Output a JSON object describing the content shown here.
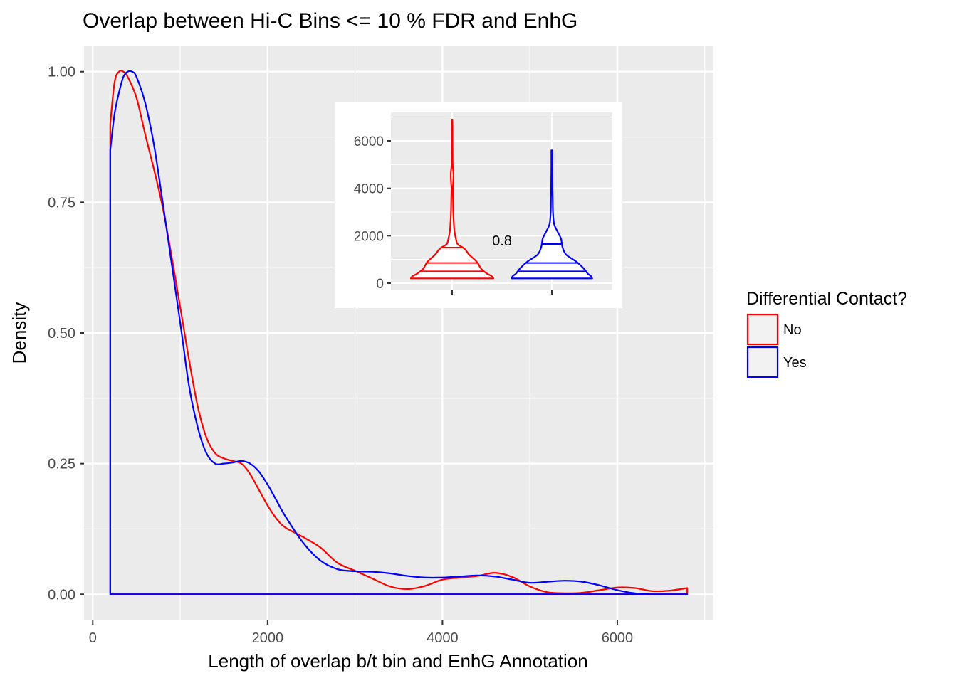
{
  "chart_data": {
    "type": "area",
    "title": "Overlap between Hi-C Bins <= 10 % FDR and EnhG",
    "xlabel": "Length of overlap b/t bin and EnhG Annotation",
    "ylabel": "Density",
    "xlim": [
      -100,
      7100
    ],
    "ylim": [
      -0.05,
      1.05
    ],
    "x_ticks": [
      0,
      2000,
      4000,
      6000
    ],
    "x_tick_labels": [
      "0",
      "2000",
      "4000",
      "6000"
    ],
    "y_ticks": [
      0,
      0.25,
      0.5,
      0.75,
      1.0
    ],
    "y_tick_labels": [
      "0.00",
      "0.25",
      "0.50",
      "0.75",
      "1.00"
    ],
    "grid": true,
    "legend": {
      "title": "Differential Contact?",
      "position": "right",
      "entries": [
        {
          "label": "No",
          "color": "#ff0000"
        },
        {
          "label": "Yes",
          "color": "#0000ff"
        }
      ]
    },
    "series": [
      {
        "name": "No",
        "color": "#ff0000",
        "x": [
          200,
          250,
          300,
          350,
          400,
          500,
          600,
          800,
          1000,
          1100,
          1200,
          1300,
          1400,
          1500,
          1600,
          1700,
          1800,
          1900,
          2000,
          2100,
          2200,
          2400,
          2600,
          2800,
          3000,
          3200,
          3400,
          3600,
          3800,
          4000,
          4200,
          4400,
          4600,
          4800,
          5000,
          5200,
          5400,
          5600,
          5800,
          6000,
          6200,
          6400,
          6600,
          6800
        ],
        "y": [
          0.9,
          0.98,
          1.0,
          1.0,
          0.99,
          0.95,
          0.88,
          0.74,
          0.55,
          0.45,
          0.36,
          0.3,
          0.27,
          0.26,
          0.255,
          0.25,
          0.23,
          0.2,
          0.17,
          0.145,
          0.128,
          0.11,
          0.09,
          0.06,
          0.045,
          0.03,
          0.015,
          0.01,
          0.016,
          0.028,
          0.032,
          0.035,
          0.041,
          0.033,
          0.015,
          0.004,
          0.002,
          0.003,
          0.008,
          0.013,
          0.012,
          0.006,
          0.007,
          0.012
        ]
      },
      {
        "name": "Yes",
        "color": "#0000ff",
        "x": [
          200,
          250,
          300,
          350,
          400,
          450,
          500,
          600,
          700,
          800,
          1000,
          1100,
          1200,
          1300,
          1400,
          1500,
          1600,
          1700,
          1800,
          1900,
          2000,
          2100,
          2200,
          2400,
          2600,
          2800,
          3000,
          3200,
          3400,
          3600,
          3800,
          4000,
          4200,
          4400,
          4600,
          4800,
          5000,
          5200,
          5400,
          5600,
          5800,
          6000,
          6200,
          6400,
          6600,
          6800
        ],
        "y": [
          0.85,
          0.92,
          0.96,
          0.99,
          1.0,
          1.0,
          0.99,
          0.94,
          0.86,
          0.75,
          0.52,
          0.4,
          0.32,
          0.27,
          0.25,
          0.25,
          0.252,
          0.255,
          0.25,
          0.235,
          0.21,
          0.18,
          0.15,
          0.1,
          0.065,
          0.048,
          0.044,
          0.043,
          0.04,
          0.035,
          0.032,
          0.032,
          0.034,
          0.036,
          0.034,
          0.028,
          0.022,
          0.024,
          0.026,
          0.024,
          0.017,
          0.008,
          0.002,
          0.0,
          0.0,
          0.0
        ]
      }
    ],
    "inset": {
      "type": "violin",
      "ylim": [
        -300,
        7200
      ],
      "y_ticks": [
        0,
        2000,
        4000,
        6000
      ],
      "y_tick_labels": [
        "0",
        "2000",
        "4000",
        "6000"
      ],
      "annotation": "0.8",
      "violins": [
        {
          "name": "No",
          "color": "#ff0000",
          "quantile_lines": [
            500,
            850,
            1500
          ],
          "profile": [
            [
              200,
              0.92
            ],
            [
              300,
              0.88
            ],
            [
              400,
              0.78
            ],
            [
              600,
              0.65
            ],
            [
              900,
              0.55
            ],
            [
              1200,
              0.38
            ],
            [
              1400,
              0.3
            ],
            [
              1500,
              0.24
            ],
            [
              1650,
              0.12
            ],
            [
              1900,
              0.08
            ],
            [
              2200,
              0.05
            ],
            [
              2600,
              0.035
            ],
            [
              3000,
              0.025
            ],
            [
              3500,
              0.02
            ],
            [
              4000,
              0.015
            ],
            [
              4200,
              0.022
            ],
            [
              4600,
              0.03
            ],
            [
              5000,
              0.012
            ],
            [
              5500,
              0.01
            ],
            [
              6000,
              0.008
            ],
            [
              6500,
              0.008
            ],
            [
              6900,
              0.005
            ]
          ]
        },
        {
          "name": "Yes",
          "color": "#0000ff",
          "quantile_lines": [
            500,
            850,
            1650
          ],
          "profile": [
            [
              200,
              0.9
            ],
            [
              300,
              0.87
            ],
            [
              400,
              0.8
            ],
            [
              600,
              0.72
            ],
            [
              900,
              0.55
            ],
            [
              1200,
              0.32
            ],
            [
              1500,
              0.24
            ],
            [
              1700,
              0.22
            ],
            [
              1900,
              0.2
            ],
            [
              2200,
              0.12
            ],
            [
              2500,
              0.05
            ],
            [
              3000,
              0.025
            ],
            [
              3500,
              0.02
            ],
            [
              4000,
              0.015
            ],
            [
              4500,
              0.012
            ],
            [
              5000,
              0.01
            ],
            [
              5600,
              0.01
            ]
          ]
        }
      ]
    }
  }
}
